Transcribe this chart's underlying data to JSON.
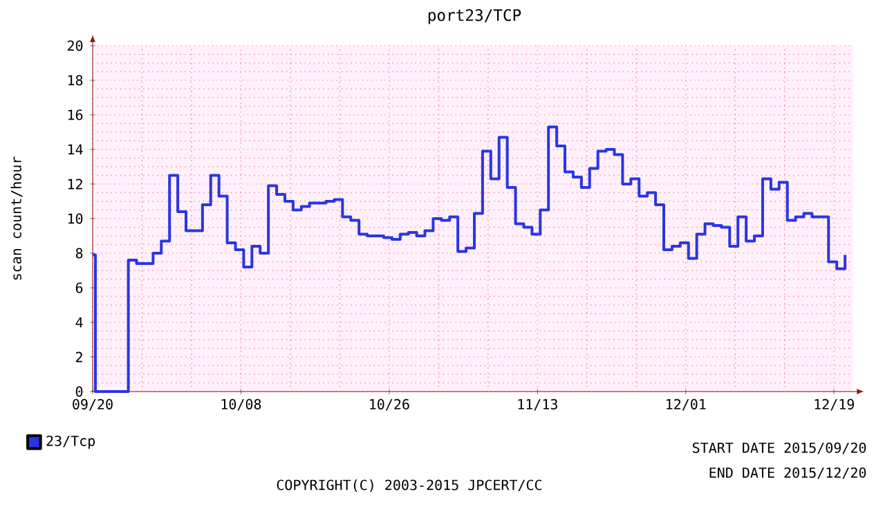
{
  "chart_data": {
    "type": "step",
    "title": "port23/TCP",
    "ylabel": "scan count/hour",
    "x": [
      "2015-09-20",
      "2015-09-20T08:00",
      "2015-09-21T08:00",
      "2015-09-22T08:00",
      "2015-09-23T08:00",
      "2015-09-24T08:00",
      "2015-09-25T08:00",
      "2015-09-26T08:00",
      "2015-09-27T08:00",
      "2015-09-28T08:00",
      "2015-09-29T08:00",
      "2015-09-30T08:00",
      "2015-10-01T08:00",
      "2015-10-02T08:00",
      "2015-10-03T08:00",
      "2015-10-04T08:00",
      "2015-10-05T08:00",
      "2015-10-06T08:00",
      "2015-10-07T08:00",
      "2015-10-08T08:00",
      "2015-10-09T08:00",
      "2015-10-10T08:00",
      "2015-10-11T08:00",
      "2015-10-12T08:00",
      "2015-10-13T08:00",
      "2015-10-14T08:00",
      "2015-10-15T08:00",
      "2015-10-16T08:00",
      "2015-10-17T08:00",
      "2015-10-18T08:00",
      "2015-10-19T08:00",
      "2015-10-20T08:00",
      "2015-10-21T08:00",
      "2015-10-22T08:00",
      "2015-10-23T08:00",
      "2015-10-24T08:00",
      "2015-10-25T08:00",
      "2015-10-26T08:00",
      "2015-10-27T08:00",
      "2015-10-28T08:00",
      "2015-10-29T08:00",
      "2015-10-30T08:00",
      "2015-10-31T08:00",
      "2015-11-01T08:00",
      "2015-11-02T08:00",
      "2015-11-03T08:00",
      "2015-11-04T08:00",
      "2015-11-05T08:00",
      "2015-11-06T08:00",
      "2015-11-07T08:00",
      "2015-11-08T08:00",
      "2015-11-09T08:00",
      "2015-11-10T08:00",
      "2015-11-11T08:00",
      "2015-11-12T08:00",
      "2015-11-13T08:00",
      "2015-11-14T08:00",
      "2015-11-15T08:00",
      "2015-11-16T08:00",
      "2015-11-17T08:00",
      "2015-11-18T08:00",
      "2015-11-19T08:00",
      "2015-11-20T08:00",
      "2015-11-21T08:00",
      "2015-11-22T08:00",
      "2015-11-23T08:00",
      "2015-11-24T08:00",
      "2015-11-25T08:00",
      "2015-11-26T08:00",
      "2015-11-27T08:00",
      "2015-11-28T08:00",
      "2015-11-29T08:00",
      "2015-11-30T08:00",
      "2015-12-01T08:00",
      "2015-12-02T08:00",
      "2015-12-03T08:00",
      "2015-12-04T08:00",
      "2015-12-05T08:00",
      "2015-12-06T08:00",
      "2015-12-07T08:00",
      "2015-12-08T08:00",
      "2015-12-09T08:00",
      "2015-12-10T08:00",
      "2015-12-11T08:00",
      "2015-12-12T08:00",
      "2015-12-13T08:00",
      "2015-12-14T08:00",
      "2015-12-15T08:00",
      "2015-12-16T08:00",
      "2015-12-17T08:00",
      "2015-12-18T08:00",
      "2015-12-19T08:00",
      "2015-12-20T08:00"
    ],
    "series": [
      {
        "name": "23/Tcp",
        "color": "#2b35e0",
        "values": [
          7.9,
          0,
          0,
          0,
          0,
          7.6,
          7.4,
          7.4,
          8.0,
          8.7,
          12.5,
          10.4,
          9.3,
          9.3,
          10.8,
          12.5,
          11.3,
          8.6,
          8.2,
          7.2,
          8.4,
          8.0,
          11.9,
          11.4,
          11.0,
          10.5,
          10.7,
          10.9,
          10.9,
          11.0,
          11.1,
          10.1,
          9.9,
          9.1,
          9.0,
          9.0,
          8.9,
          8.8,
          9.1,
          9.2,
          9.0,
          9.3,
          10.0,
          9.9,
          10.1,
          8.1,
          8.3,
          10.3,
          13.9,
          12.3,
          14.7,
          11.8,
          9.7,
          9.5,
          9.1,
          10.5,
          15.3,
          14.2,
          12.7,
          12.4,
          11.8,
          12.9,
          13.9,
          14.0,
          13.7,
          12.0,
          12.3,
          11.3,
          11.5,
          10.8,
          8.2,
          8.4,
          8.6,
          7.7,
          9.1,
          9.7,
          9.6,
          9.5,
          8.4,
          10.1,
          8.7,
          9.0,
          12.3,
          11.7,
          12.1,
          9.9,
          10.1,
          10.3,
          10.1,
          10.1,
          7.5,
          7.1,
          7.9
        ]
      }
    ],
    "xlim": [
      "2015-09-20",
      "2015-12-21T08:00"
    ],
    "xticks": [
      {
        "value": "2015-09-20",
        "label": "09/20"
      },
      {
        "value": "2015-09-26",
        "label": null
      },
      {
        "value": "2015-10-02",
        "label": null
      },
      {
        "value": "2015-10-08",
        "label": "10/08"
      },
      {
        "value": "2015-10-14",
        "label": null
      },
      {
        "value": "2015-10-20",
        "label": null
      },
      {
        "value": "2015-10-26",
        "label": "10/26"
      },
      {
        "value": "2015-11-01",
        "label": null
      },
      {
        "value": "2015-11-07",
        "label": null
      },
      {
        "value": "2015-11-13",
        "label": "11/13"
      },
      {
        "value": "2015-11-19",
        "label": null
      },
      {
        "value": "2015-11-25",
        "label": null
      },
      {
        "value": "2015-12-01",
        "label": "12/01"
      },
      {
        "value": "2015-12-07",
        "label": null
      },
      {
        "value": "2015-12-13",
        "label": null
      },
      {
        "value": "2015-12-19",
        "label": "12/19"
      }
    ],
    "ylim": [
      0,
      20
    ],
    "yticks": [
      0,
      {
        "value": 0.5,
        "label": null
      },
      {
        "value": 1,
        "label": null
      },
      {
        "value": 1.5,
        "label": null
      },
      2,
      {
        "value": 2.5,
        "label": null
      },
      {
        "value": 3,
        "label": null
      },
      {
        "value": 3.5,
        "label": null
      },
      4,
      {
        "value": 4.5,
        "label": null
      },
      {
        "value": 5,
        "label": null
      },
      {
        "value": 5.5,
        "label": null
      },
      6,
      {
        "value": 6.5,
        "label": null
      },
      {
        "value": 7,
        "label": null
      },
      {
        "value": 7.5,
        "label": null
      },
      8,
      {
        "value": 8.5,
        "label": null
      },
      {
        "value": 9,
        "label": null
      },
      {
        "value": 9.5,
        "label": null
      },
      10,
      {
        "value": 10.5,
        "label": null
      },
      {
        "value": 11,
        "label": null
      },
      {
        "value": 11.5,
        "label": null
      },
      12,
      {
        "value": 12.5,
        "label": null
      },
      {
        "value": 13,
        "label": null
      },
      {
        "value": 13.5,
        "label": null
      },
      14,
      {
        "value": 14.5,
        "label": null
      },
      {
        "value": 15,
        "label": null
      },
      {
        "value": 15.5,
        "label": null
      },
      16,
      {
        "value": 16.5,
        "label": null
      },
      {
        "value": 17,
        "label": null
      },
      {
        "value": 17.5,
        "label": null
      },
      18,
      {
        "value": 18.5,
        "label": null
      },
      {
        "value": 19,
        "label": null
      },
      {
        "value": 19.5,
        "label": null
      },
      20
    ],
    "grid": true,
    "legend": "bottom left",
    "annotations": [
      "START DATE 2015/09/20",
      "END DATE 2015/12/20",
      "COPYRIGHT(C) 2003-2015 JPCERT/CC"
    ]
  }
}
